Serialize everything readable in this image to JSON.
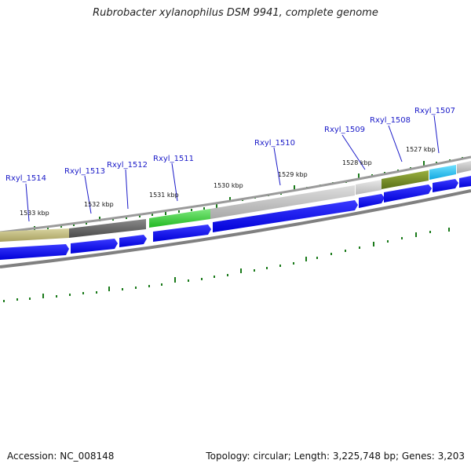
{
  "title": "Rubrobacter xylanophilus DSM 9941, complete genome",
  "accession": "Accession: NC_008148",
  "summary": "Topology: circular; Length: 3,225,748 bp; Genes: 3,203",
  "kbp_labels": [
    "1533 kbp",
    "1532 kbp",
    "1531 kbp",
    "1530 kbp",
    "1529 kbp",
    "1528 kbp",
    "1527 kbp"
  ],
  "gene_labels": [
    "Rxyl_1514",
    "Rxyl_1513",
    "Rxyl_1512",
    "Rxyl_1511",
    "Rxyl_1510",
    "Rxyl_1509",
    "Rxyl_1508",
    "Rxyl_1507"
  ],
  "colors": {
    "cds": "#0000ee",
    "tick": "#1a7a1a",
    "backbone": "#8a8a8a",
    "label": "#1a1ac8"
  }
}
